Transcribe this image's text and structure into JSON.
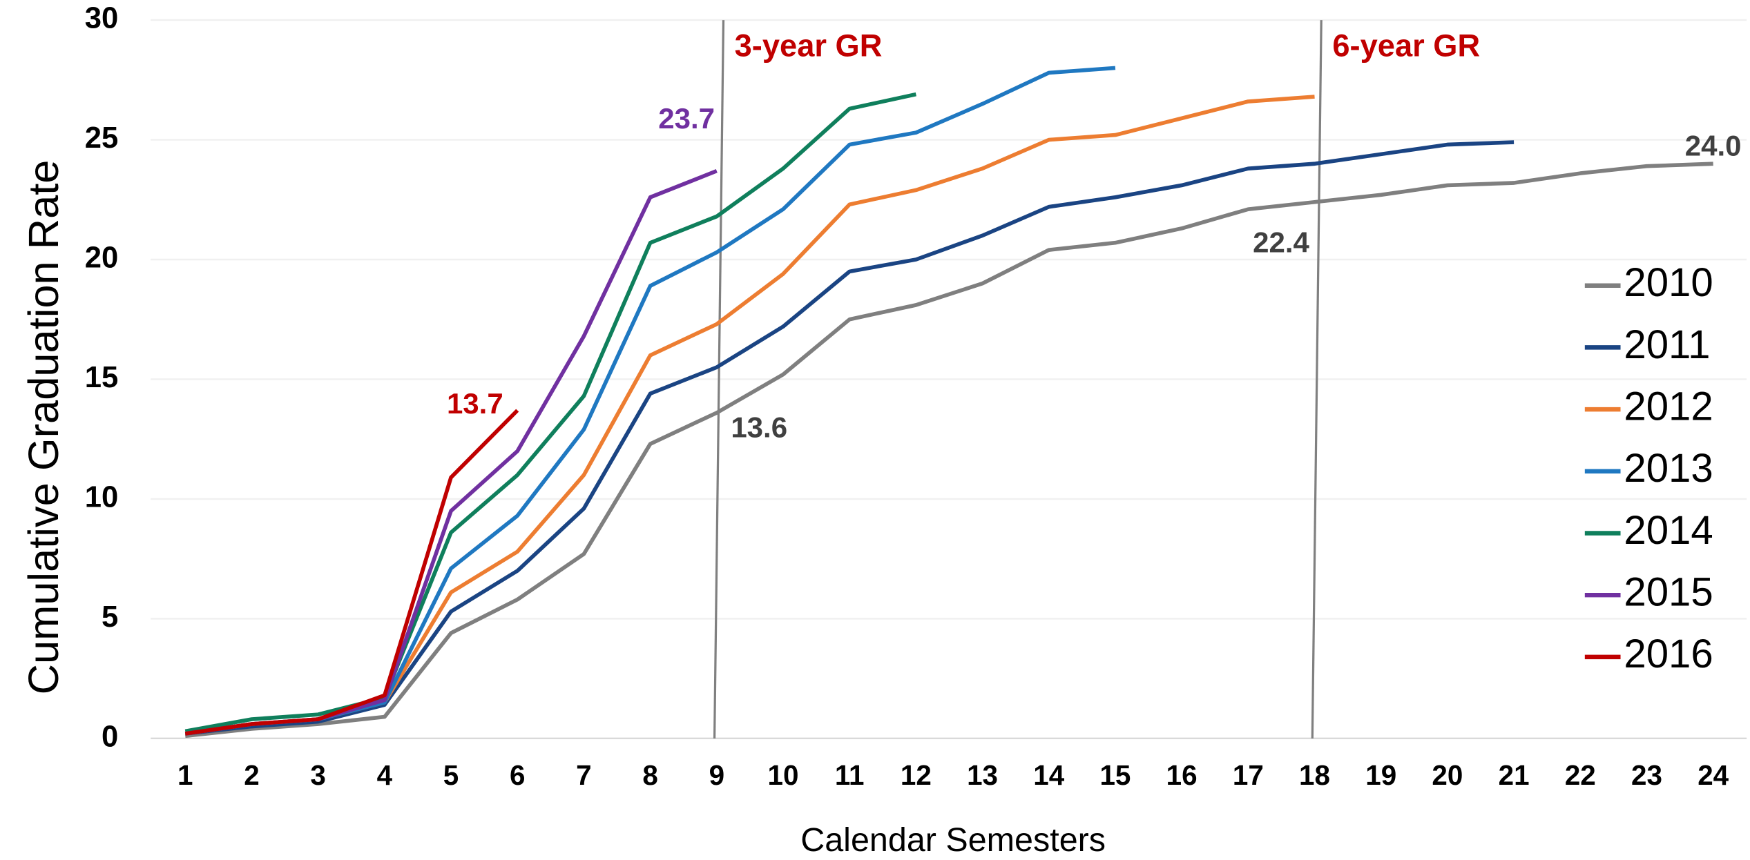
{
  "chart_data": {
    "type": "line",
    "x_label": "Calendar Semesters",
    "y_label": "Cumulative Graduation Rate",
    "x": [
      1,
      2,
      3,
      4,
      5,
      6,
      7,
      8,
      9,
      10,
      11,
      12,
      13,
      14,
      15,
      16,
      17,
      18,
      19,
      20,
      21,
      22,
      23,
      24
    ],
    "xlim": [
      1,
      24
    ],
    "xticks": [
      1,
      2,
      3,
      4,
      5,
      6,
      7,
      8,
      9,
      10,
      11,
      12,
      13,
      14,
      15,
      16,
      17,
      18,
      19,
      20,
      21,
      22,
      23,
      24
    ],
    "ylim": [
      0,
      30
    ],
    "yticks": [
      0,
      5,
      10,
      15,
      20,
      25,
      30
    ],
    "grid": true,
    "legend": "right",
    "series": [
      {
        "name": "2010",
        "color": "#7f7f7f",
        "values": [
          0.1,
          0.4,
          0.6,
          0.9,
          4.4,
          5.8,
          7.7,
          12.3,
          13.6,
          15.2,
          17.5,
          18.1,
          19.0,
          20.4,
          20.7,
          21.3,
          22.1,
          22.4,
          22.7,
          23.1,
          23.2,
          23.6,
          23.9,
          24.0
        ]
      },
      {
        "name": "2011",
        "color": "#1a4483",
        "values": [
          0.2,
          0.5,
          0.7,
          1.4,
          5.3,
          7.0,
          9.6,
          14.4,
          15.5,
          17.2,
          19.5,
          20.0,
          21.0,
          22.2,
          22.6,
          23.1,
          23.8,
          24.0,
          24.4,
          24.8,
          24.9,
          null,
          null,
          null
        ]
      },
      {
        "name": "2012",
        "color": "#ed7d31",
        "values": [
          0.2,
          0.6,
          0.8,
          1.5,
          6.1,
          7.8,
          11.0,
          16.0,
          17.3,
          19.4,
          22.3,
          22.9,
          23.8,
          25.0,
          25.2,
          25.9,
          26.6,
          26.8,
          null,
          null,
          null,
          null,
          null,
          null
        ]
      },
      {
        "name": "2013",
        "color": "#1f78c1",
        "values": [
          0.2,
          0.6,
          0.8,
          1.5,
          7.1,
          9.3,
          12.9,
          18.9,
          20.3,
          22.1,
          24.8,
          25.3,
          26.5,
          27.8,
          28.0,
          null,
          null,
          null,
          null,
          null,
          null,
          null,
          null,
          null
        ]
      },
      {
        "name": "2014",
        "color": "#0f7f5c",
        "values": [
          0.3,
          0.8,
          1.0,
          1.7,
          8.6,
          11.0,
          14.3,
          20.7,
          21.8,
          23.8,
          26.3,
          26.9,
          null,
          null,
          null,
          null,
          null,
          null,
          null,
          null,
          null,
          null,
          null,
          null
        ]
      },
      {
        "name": "2015",
        "color": "#7030a0",
        "values": [
          0.2,
          0.6,
          0.8,
          1.6,
          9.5,
          12.0,
          16.8,
          22.6,
          23.7,
          null,
          null,
          null,
          null,
          null,
          null,
          null,
          null,
          null,
          null,
          null,
          null,
          null,
          null,
          null
        ]
      },
      {
        "name": "2016",
        "color": "#c00000",
        "values": [
          0.2,
          0.6,
          0.8,
          1.8,
          10.9,
          13.7,
          null,
          null,
          null,
          null,
          null,
          null,
          null,
          null,
          null,
          null,
          null,
          null,
          null,
          null,
          null,
          null,
          null,
          null
        ]
      }
    ],
    "annotations": [
      {
        "text": "13.7",
        "x": 6,
        "y": 13.7,
        "color": "#c00000"
      },
      {
        "text": "23.7",
        "x": 9,
        "y": 23.7,
        "color": "#7030a0"
      },
      {
        "text": "13.6",
        "x": 9,
        "y": 13.6,
        "color": "#404040"
      },
      {
        "text": "22.4",
        "x": 18,
        "y": 22.4,
        "color": "#404040"
      },
      {
        "text": "24.0",
        "x": 24,
        "y": 24.0,
        "color": "#404040"
      }
    ],
    "reference_lines": [
      {
        "text": "3-year GR",
        "x": 9,
        "color": "#c00000"
      },
      {
        "text": "6-year GR",
        "x": 18,
        "color": "#c00000"
      }
    ]
  }
}
